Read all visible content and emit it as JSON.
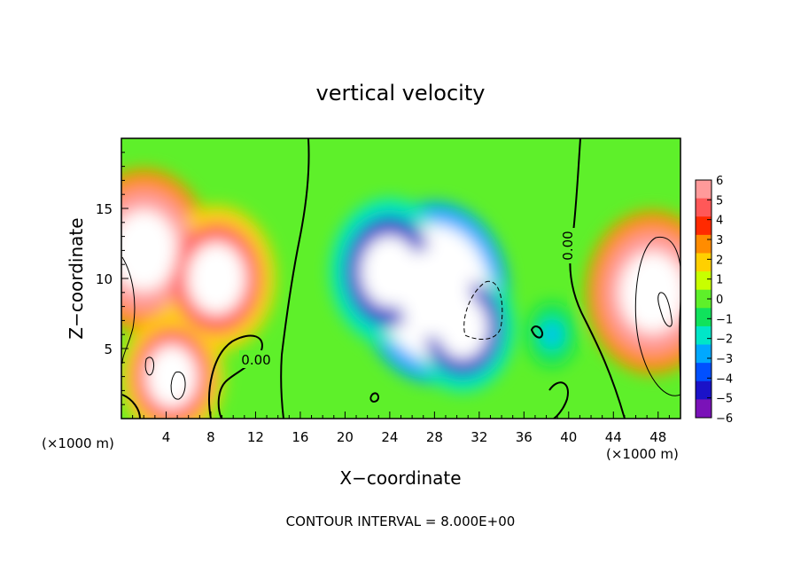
{
  "chart_data": {
    "type": "heatmap",
    "title": "vertical velocity",
    "xlabel": "X−coordinate",
    "ylabel": "Z−coordinate",
    "x_unit_left": "(×1000 m)",
    "x_unit_right": "(×1000 m)",
    "footer": "CONTOUR INTERVAL = 8.000E+00",
    "contour_label": "0.00",
    "xlim": [
      0,
      50
    ],
    "ylim": [
      0,
      20
    ],
    "x_ticks": [
      4,
      8,
      12,
      16,
      20,
      24,
      28,
      32,
      36,
      40,
      44,
      48
    ],
    "y_ticks": [
      5,
      10,
      15
    ],
    "colorbar": {
      "levels": [
        6,
        5,
        4,
        3,
        2,
        1,
        0,
        -1,
        -2,
        -3,
        -4,
        -5,
        -6
      ],
      "labels": [
        "6",
        "5",
        "4",
        "3",
        "2",
        "1",
        "0",
        "−1",
        "−2",
        "−3",
        "−4",
        "−5",
        "−6"
      ],
      "colors": [
        "#ff9a9a",
        "#ff5858",
        "#ff2a00",
        "#ff8c00",
        "#ffd000",
        "#c8ff00",
        "#5ef02a",
        "#10e25c",
        "#00e6c8",
        "#00a8ff",
        "#0050ff",
        "#1a12c8",
        "#7a12b8"
      ]
    },
    "features": [
      {
        "x": 2.0,
        "z": 12.0,
        "w": 14
      },
      {
        "x": 8.5,
        "z": 10.0,
        "w": 12
      },
      {
        "x": 4.5,
        "z": 3.0,
        "w": 10
      },
      {
        "x": 47.5,
        "z": 9.0,
        "w": 14
      },
      {
        "x": 28.0,
        "z": 9.0,
        "w": -16
      },
      {
        "x": 24.0,
        "z": 10.5,
        "w": -12
      },
      {
        "x": 30.5,
        "z": 6.5,
        "w": -10
      },
      {
        "x": 38.5,
        "z": 6.0,
        "w": -3
      }
    ]
  }
}
